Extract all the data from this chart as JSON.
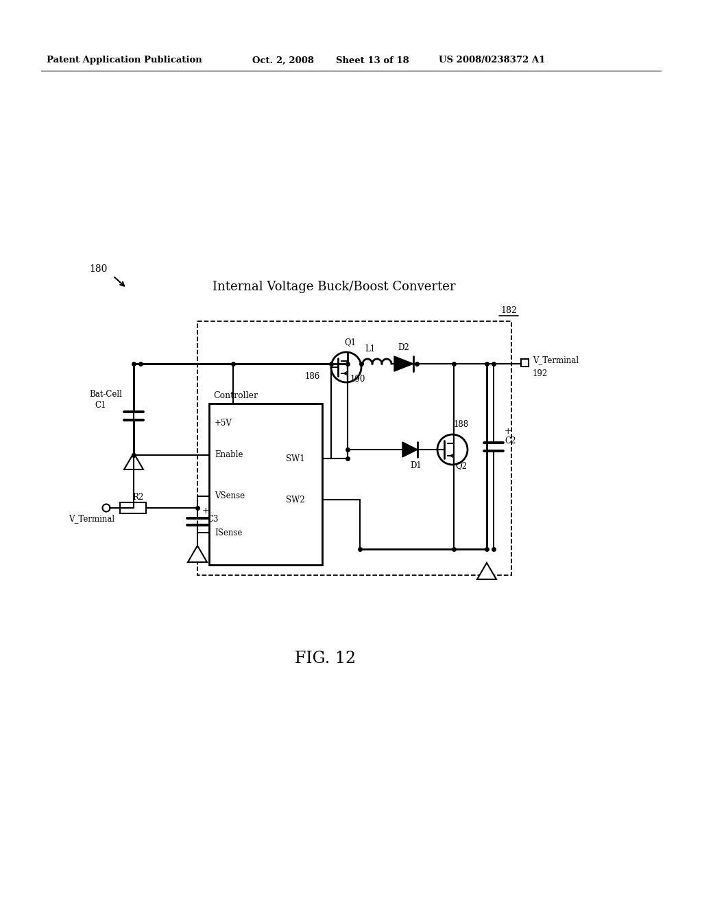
{
  "background_color": "#ffffff",
  "header_left": "Patent Application Publication",
  "header_date": "Oct. 2, 2008",
  "header_sheet": "Sheet 13 of 18",
  "header_patent": "US 2008/0238372 A1",
  "title_label": "Internal Voltage Buck/Boost Converter",
  "fig_label": "FIG. 12",
  "ref_180": "180",
  "ref_182": "182",
  "ref_186": "186",
  "ref_188": "188",
  "ref_190": "190",
  "ref_192": "192"
}
